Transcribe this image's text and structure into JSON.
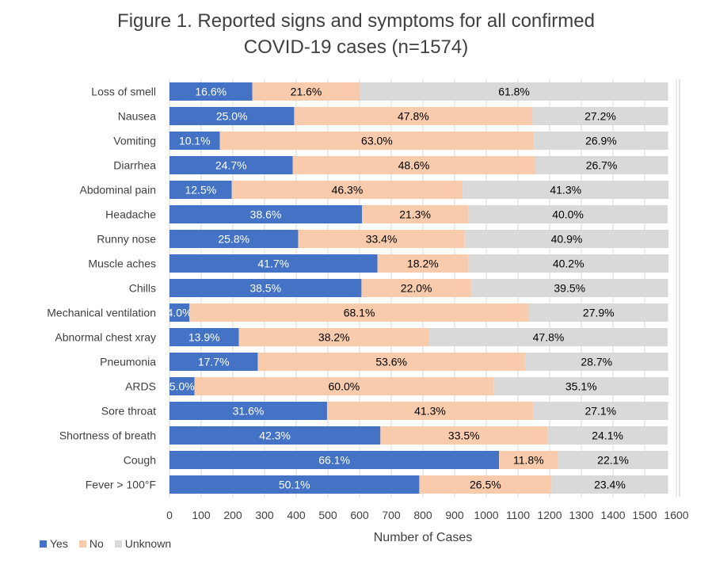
{
  "chart_data": {
    "type": "bar",
    "orientation": "horizontal",
    "stacked": true,
    "title": "Figure 1. Reported signs and symptoms for all confirmed COVID-19 cases (n=1574)",
    "title_lines": [
      "Figure 1. Reported signs and symptoms for all confirmed",
      "COVID-19 cases (n=1574)"
    ],
    "total_n": 1574,
    "xlabel": "Number of Cases",
    "ylabel": "",
    "xlim": [
      0,
      1600
    ],
    "xticks": [
      0,
      100,
      200,
      300,
      400,
      500,
      600,
      700,
      800,
      900,
      1000,
      1100,
      1200,
      1300,
      1400,
      1500,
      1600
    ],
    "grid": true,
    "legend_position": "bottom-left",
    "categories": [
      "Loss of smell",
      "Nausea",
      "Vomiting",
      "Diarrhea",
      "Abdominal pain",
      "Headache",
      "Runny nose",
      "Muscle aches",
      "Chills",
      "Mechanical ventilation",
      "Abnormal chest xray",
      "Pneumonia",
      "ARDS",
      "Sore throat",
      "Shortness of breath",
      "Cough",
      "Fever > 100°F"
    ],
    "series": [
      {
        "name": "Yes",
        "color": "#4472C4",
        "label_color": "#FFFFFF",
        "percent": [
          16.6,
          25.0,
          10.1,
          24.7,
          12.5,
          38.6,
          25.8,
          41.7,
          38.5,
          4.0,
          13.9,
          17.7,
          5.0,
          31.6,
          42.3,
          66.1,
          50.1
        ]
      },
      {
        "name": "No",
        "color": "#F8CBAD",
        "label_color": "#000000",
        "percent": [
          21.6,
          47.8,
          63.0,
          48.6,
          46.3,
          21.3,
          33.4,
          18.2,
          22.0,
          68.1,
          38.2,
          53.6,
          60.0,
          41.3,
          33.5,
          11.8,
          26.5
        ]
      },
      {
        "name": "Unknown",
        "color": "#D9D9D9",
        "label_color": "#000000",
        "percent": [
          61.8,
          27.2,
          26.9,
          26.7,
          41.3,
          40.0,
          40.9,
          40.2,
          39.5,
          27.9,
          47.8,
          28.7,
          35.1,
          27.1,
          24.1,
          22.1,
          23.4
        ]
      }
    ]
  }
}
